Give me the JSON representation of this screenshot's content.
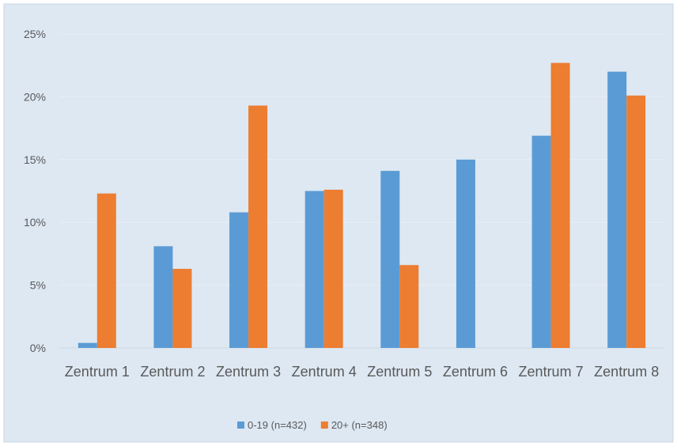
{
  "chart_data": {
    "type": "bar",
    "categories": [
      "Zentrum 1",
      "Zentrum 2",
      "Zentrum 3",
      "Zentrum 4",
      "Zentrum 5",
      "Zentrum 6",
      "Zentrum 7",
      "Zentrum 8"
    ],
    "series": [
      {
        "name": "0-19 (n=432)",
        "color": "#5b9bd5",
        "values": [
          0.4,
          8.1,
          10.8,
          12.5,
          14.1,
          15.0,
          16.9,
          22.0
        ]
      },
      {
        "name": "20+ (n=348)",
        "color": "#ed7d31",
        "values": [
          12.3,
          6.3,
          19.3,
          12.6,
          6.6,
          0,
          22.7,
          20.1
        ]
      }
    ],
    "ylim": [
      0,
      25
    ],
    "yticks": [
      {
        "value": 0,
        "label": "0%"
      },
      {
        "value": 5,
        "label": "5%"
      },
      {
        "value": 10,
        "label": "10%"
      },
      {
        "value": 15,
        "label": "15%"
      },
      {
        "value": 20,
        "label": "20%"
      },
      {
        "value": 25,
        "label": "25%"
      }
    ],
    "grid": true,
    "legend": "bottom"
  }
}
